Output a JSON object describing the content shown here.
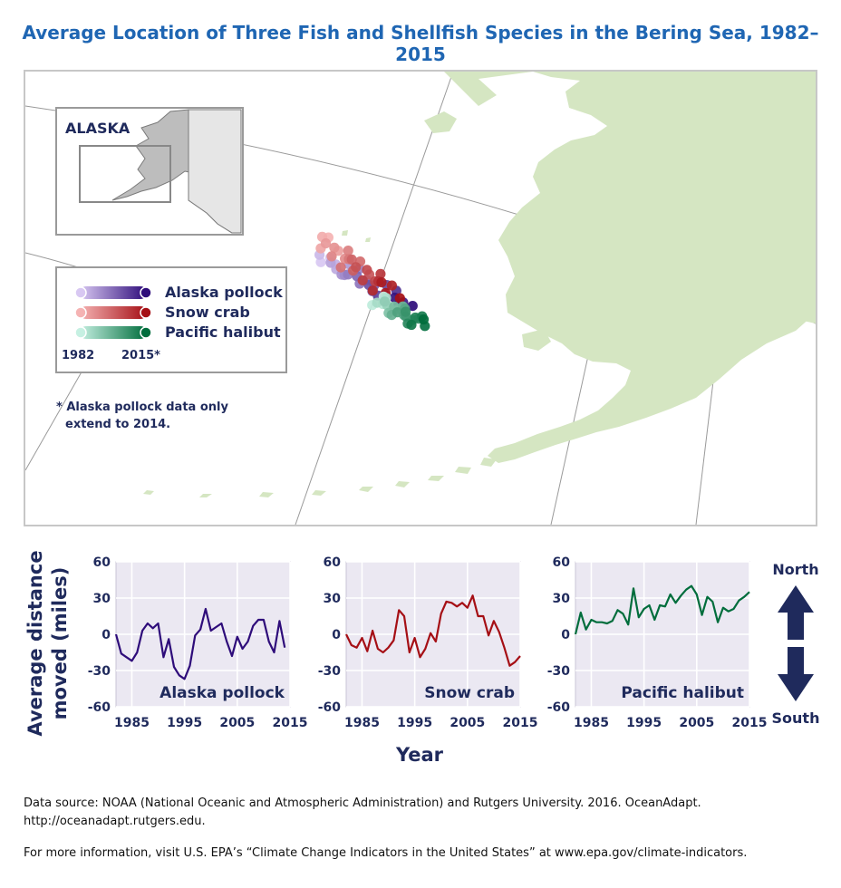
{
  "title": "Average Location of Three Fish and Shellfish Species in the Bering Sea, 1982–2015",
  "map": {
    "inset_label": "ALASKA",
    "legend": {
      "items": [
        {
          "label": "Alaska pollock",
          "light": "#d8c8f2",
          "dark": "#2e0c7a"
        },
        {
          "label": "Snow crab",
          "light": "#f5b3b3",
          "dark": "#a50f15"
        },
        {
          "label": "Pacific halibut",
          "light": "#c6f0e2",
          "dark": "#006d3c"
        }
      ],
      "start_year": "1982",
      "end_year": "2015*"
    },
    "note_line1": "* Alaska pollock data only",
    "note_line2": "extend to 2014.",
    "land_color": "#d5e6c2"
  },
  "chart_data": [
    {
      "type": "line",
      "name": "Alaska pollock",
      "color": "#2e0c7a",
      "x": [
        1982,
        1983,
        1984,
        1985,
        1986,
        1987,
        1988,
        1989,
        1990,
        1991,
        1992,
        1993,
        1994,
        1995,
        1996,
        1997,
        1998,
        1999,
        2000,
        2001,
        2002,
        2003,
        2004,
        2005,
        2006,
        2007,
        2008,
        2009,
        2010,
        2011,
        2012,
        2013,
        2014
      ],
      "y": [
        0,
        -16,
        -19,
        -22,
        -15,
        3,
        9,
        5,
        9,
        -19,
        -4,
        -27,
        -34,
        -37,
        -26,
        -1,
        4,
        21,
        3,
        6,
        9,
        -6,
        -18,
        -2,
        -12,
        -6,
        7,
        12,
        12,
        -6,
        -15,
        11,
        -11
      ],
      "xlim": [
        1982,
        2015
      ],
      "ylim": [
        -60,
        60
      ],
      "xticks": [
        1985,
        1995,
        2005,
        2015
      ],
      "yticks": [
        60,
        30,
        0,
        -30,
        -60
      ]
    },
    {
      "type": "line",
      "name": "Snow crab",
      "color": "#a50f15",
      "x": [
        1982,
        1983,
        1984,
        1985,
        1986,
        1987,
        1988,
        1989,
        1990,
        1991,
        1992,
        1993,
        1994,
        1995,
        1996,
        1997,
        1998,
        1999,
        2000,
        2001,
        2002,
        2003,
        2004,
        2005,
        2006,
        2007,
        2008,
        2009,
        2010,
        2011,
        2012,
        2013,
        2014,
        2015
      ],
      "y": [
        0,
        -9,
        -11,
        -3,
        -14,
        3,
        -12,
        -15,
        -11,
        -5,
        20,
        15,
        -15,
        -3,
        -19,
        -12,
        1,
        -6,
        17,
        27,
        26,
        23,
        26,
        22,
        32,
        15,
        15,
        -1,
        11,
        2,
        -11,
        -26,
        -23,
        -18
      ],
      "xlim": [
        1982,
        2015
      ],
      "ylim": [
        -60,
        60
      ],
      "xticks": [
        1985,
        1995,
        2005,
        2015
      ],
      "yticks": [
        60,
        30,
        0,
        -30,
        -60
      ]
    },
    {
      "type": "line",
      "name": "Pacific halibut",
      "color": "#006d3c",
      "x": [
        1982,
        1983,
        1984,
        1985,
        1986,
        1987,
        1988,
        1989,
        1990,
        1991,
        1992,
        1993,
        1994,
        1995,
        1996,
        1997,
        1998,
        1999,
        2000,
        2001,
        2002,
        2003,
        2004,
        2005,
        2006,
        2007,
        2008,
        2009,
        2010,
        2011,
        2012,
        2013,
        2014,
        2015
      ],
      "y": [
        0,
        18,
        4,
        12,
        10,
        10,
        9,
        11,
        20,
        17,
        8,
        38,
        14,
        21,
        24,
        12,
        24,
        23,
        33,
        26,
        32,
        37,
        40,
        33,
        16,
        31,
        27,
        10,
        22,
        19,
        21,
        28,
        31,
        35
      ],
      "xlim": [
        1982,
        2015
      ],
      "ylim": [
        -60,
        60
      ],
      "xticks": [
        1985,
        1995,
        2005,
        2015
      ],
      "yticks": [
        60,
        30,
        0,
        -30,
        -60
      ]
    }
  ],
  "charts": {
    "ylabel_line1": "Average distance",
    "ylabel_line2": "moved (miles)",
    "xlabel": "Year",
    "plot_bg": "#ebe8f2",
    "direction_north": "North",
    "direction_south": "South",
    "arrow_color": "#1f2a5c"
  },
  "footer": {
    "line1": "Data source: NOAA (National Oceanic and Atmospheric Administration) and Rutgers University. 2016. OceanAdapt.",
    "line2": "http://oceanadapt.rutgers.edu.",
    "line3": "For more information, visit U.S. EPA’s “Climate Change Indicators in the United States” at www.epa.gov/climate-indicators."
  }
}
